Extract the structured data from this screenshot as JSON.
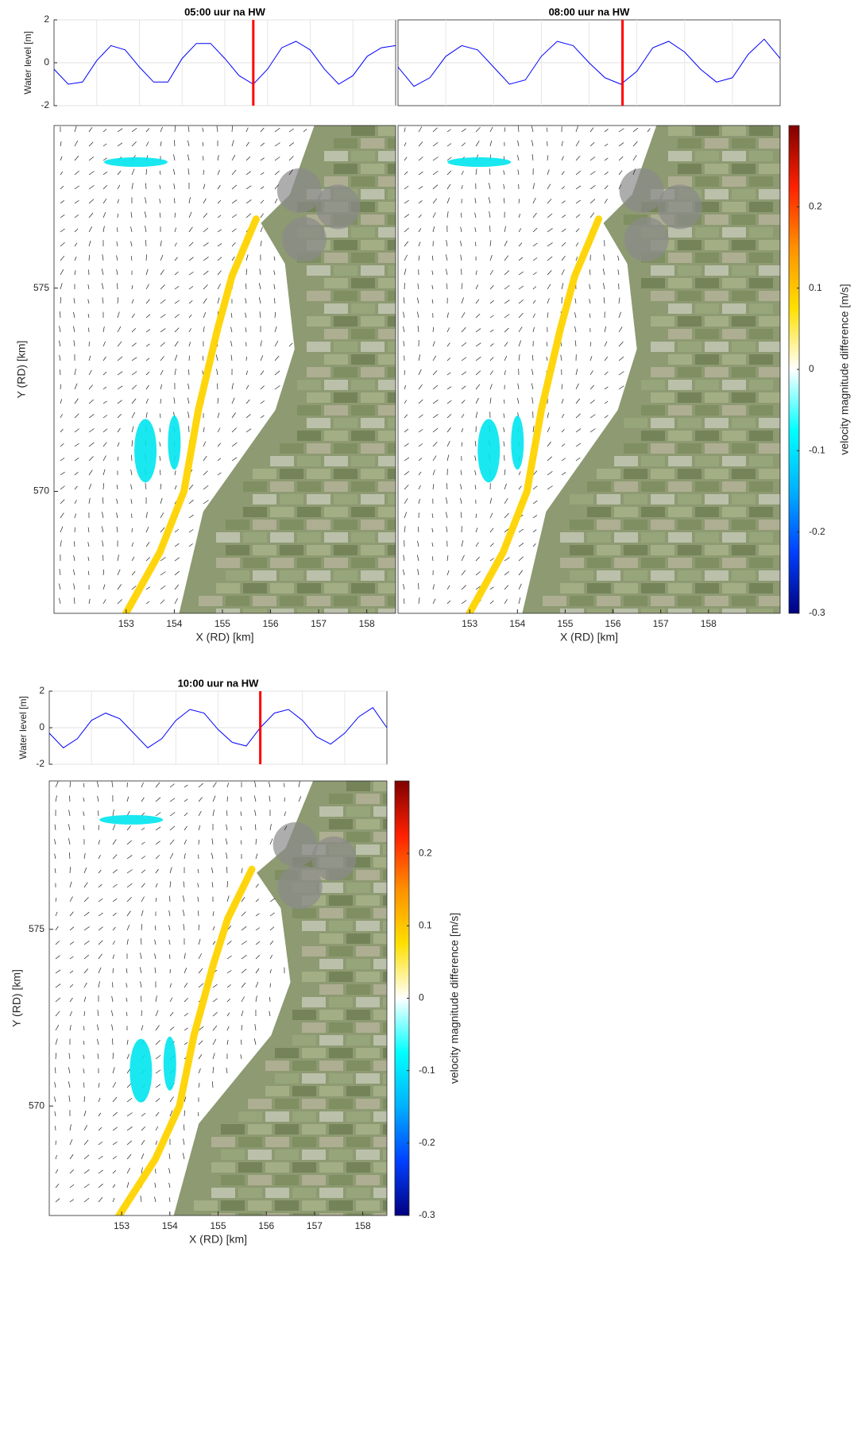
{
  "chart_data": [
    {
      "type": "line",
      "title": "05:00 uur na HW",
      "ylabel": "Water level [m]",
      "categories": [
        null,
        null,
        null,
        null,
        null,
        null,
        null,
        null,
        null,
        null,
        null,
        null,
        null,
        null,
        null,
        null,
        null,
        null,
        null,
        null,
        null,
        null,
        null,
        null,
        null
      ],
      "series": [
        {
          "color": "#0000ff",
          "values": [
            -0.3,
            -1.0,
            -0.9,
            0.1,
            0.8,
            0.6,
            -0.2,
            -0.9,
            -0.9,
            0.2,
            0.9,
            0.9,
            0.2,
            -0.6,
            -1.0,
            -0.3,
            0.7,
            1.0,
            0.6,
            -0.3,
            -1.0,
            -0.6,
            0.3,
            0.7,
            0.8
          ]
        }
      ],
      "now_index": 14.0,
      "now_color": "#ff0000",
      "ylim": [
        -2,
        2
      ],
      "yticks": [
        -2,
        0,
        2
      ],
      "grid": true
    },
    {
      "type": "line",
      "title": "08:00 uur na HW",
      "categories": [
        null,
        null,
        null,
        null,
        null,
        null,
        null,
        null,
        null,
        null,
        null,
        null,
        null,
        null,
        null,
        null,
        null,
        null,
        null,
        null,
        null,
        null,
        null,
        null,
        null
      ],
      "series": [
        {
          "color": "#0000ff",
          "values": [
            -0.2,
            -1.1,
            -0.7,
            0.3,
            0.8,
            0.6,
            -0.2,
            -1.0,
            -0.8,
            0.3,
            1.0,
            0.8,
            0.0,
            -0.7,
            -1.0,
            -0.4,
            0.7,
            1.0,
            0.5,
            -0.3,
            -0.9,
            -0.7,
            0.4,
            1.1,
            0.2
          ]
        }
      ],
      "now_index": 14.1,
      "now_color": "#ff0000",
      "ylim": [
        -2,
        2
      ],
      "grid": true
    },
    {
      "type": "quiver",
      "xlabel": "X (RD) [km]",
      "ylabel": "Y (RD) [km]",
      "xlim": [
        151.5,
        158.6
      ],
      "ylim": [
        567.0,
        579.0
      ],
      "xticks": [
        153,
        154,
        155,
        156,
        157,
        158
      ],
      "yticks": [
        570,
        575
      ]
    },
    {
      "type": "quiver",
      "xlabel": "X (RD) [km]",
      "xlim": [
        151.5,
        159.5
      ],
      "ylim": [
        567.0,
        579.0
      ],
      "xticks": [
        153,
        154,
        155,
        156,
        157,
        158
      ],
      "colorbar": {
        "label": "velocity magnitude difference [m/s]",
        "lim": [
          -0.3,
          0.3
        ],
        "ticks": [
          -0.3,
          -0.2,
          -0.1,
          0,
          0.1,
          0.2
        ],
        "colors": [
          "#00007f",
          "#0040ff",
          "#00b0ff",
          "#00ffff",
          "#ffffff",
          "#ffe000",
          "#ff9000",
          "#ff2000",
          "#7f0000"
        ]
      }
    },
    {
      "type": "line",
      "title": "10:00 uur na HW",
      "ylabel": "Water level [m]",
      "categories": [
        null,
        null,
        null,
        null,
        null,
        null,
        null,
        null,
        null,
        null,
        null,
        null,
        null,
        null,
        null,
        null,
        null,
        null,
        null,
        null,
        null,
        null,
        null,
        null,
        null
      ],
      "series": [
        {
          "color": "#0000ff",
          "values": [
            -0.3,
            -1.1,
            -0.6,
            0.4,
            0.8,
            0.5,
            -0.3,
            -1.1,
            -0.6,
            0.4,
            1.0,
            0.8,
            -0.1,
            -0.8,
            -1.0,
            0.0,
            0.8,
            1.0,
            0.4,
            -0.5,
            -0.9,
            -0.3,
            0.6,
            1.1,
            0.0
          ]
        }
      ],
      "now_index": 15.0,
      "now_color": "#ff0000",
      "ylim": [
        -2,
        2
      ],
      "yticks": [
        -2,
        0,
        2
      ],
      "grid": true
    },
    {
      "type": "quiver",
      "xlabel": "X (RD) [km]",
      "ylabel": "Y (RD) [km]",
      "xlim": [
        151.5,
        158.5
      ],
      "ylim": [
        566.9,
        579.2
      ],
      "xticks": [
        153,
        154,
        155,
        156,
        157,
        158
      ],
      "yticks": [
        570,
        575
      ],
      "colorbar": {
        "label": "velocity magnitude difference [m/s]",
        "lim": [
          -0.3,
          0.3
        ],
        "ticks": [
          -0.3,
          -0.2,
          -0.1,
          0,
          0.1,
          0.2
        ],
        "colors": [
          "#00007f",
          "#0040ff",
          "#00b0ff",
          "#00ffff",
          "#ffffff",
          "#ffe000",
          "#ff9000",
          "#ff2000",
          "#7f0000"
        ]
      }
    }
  ]
}
